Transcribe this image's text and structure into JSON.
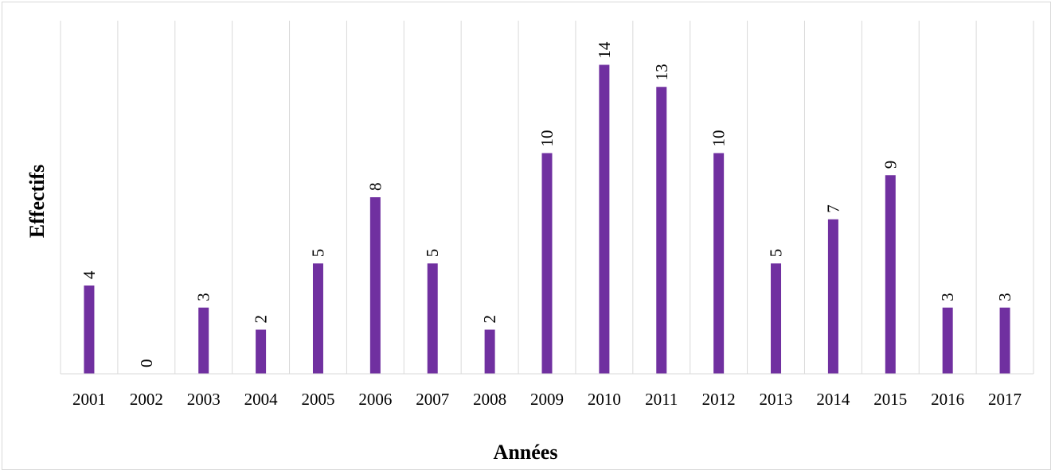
{
  "chart_data": {
    "type": "bar",
    "categories": [
      "2001",
      "2002",
      "2003",
      "2004",
      "2005",
      "2006",
      "2007",
      "2008",
      "2009",
      "2010",
      "2011",
      "2012",
      "2013",
      "2014",
      "2015",
      "2016",
      "2017"
    ],
    "values": [
      4,
      0,
      3,
      2,
      5,
      8,
      5,
      2,
      10,
      14,
      13,
      10,
      5,
      7,
      9,
      3,
      3
    ],
    "title": "",
    "xlabel": "Années",
    "ylabel": "Effectifs",
    "ylim": [
      0,
      15
    ],
    "grid": "vertical",
    "legend": "none",
    "bar_color": "#7030a0",
    "data_labels": "rotated-above-bars"
  },
  "colors": {
    "bar": "#7030a0",
    "grid": "#d9d9d9",
    "axis": "#d9d9d9",
    "text": "#000000"
  }
}
